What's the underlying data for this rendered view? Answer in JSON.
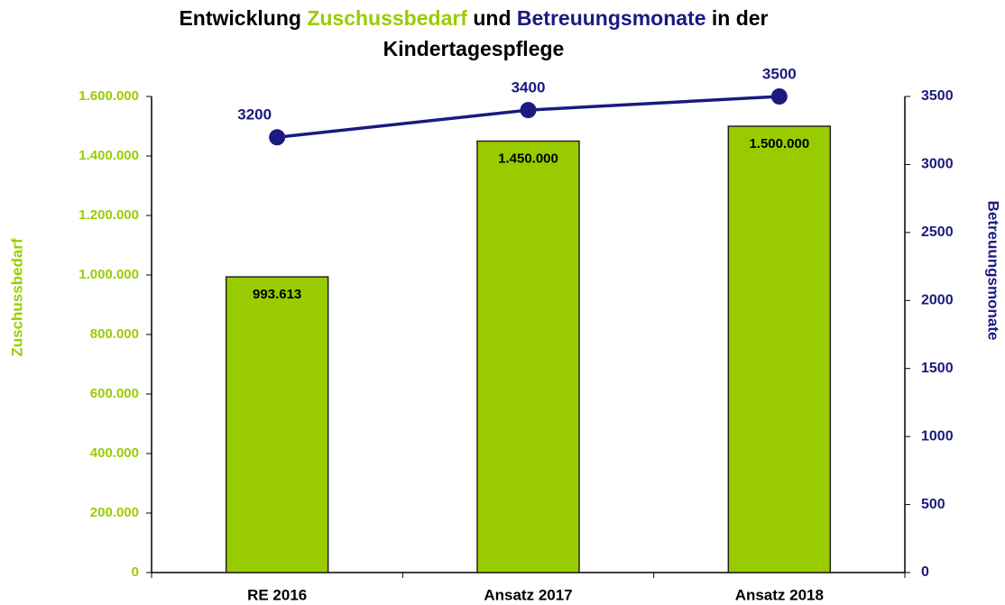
{
  "chart_data": {
    "type": "bar_line",
    "title": [
      "Entwicklung",
      "Zuschussbedarf",
      "und",
      "Betreuungsmonate",
      "in der",
      "Kindertagespflege"
    ],
    "categories": [
      "RE 2016",
      "Ansatz 2017",
      "Ansatz 2018"
    ],
    "series": [
      {
        "name": "Zuschussbedarf",
        "type": "bar",
        "color": "#99cc00",
        "values": [
          993613,
          1450000,
          1500000
        ],
        "value_labels": [
          "993.613",
          "1.450.000",
          "1.500.000"
        ]
      },
      {
        "name": "Betreuungsmonate",
        "type": "line",
        "axis": "y2",
        "color": "#1a1a80",
        "values": [
          3200,
          3400,
          3500
        ]
      }
    ],
    "ylim": [
      0,
      1600000
    ],
    "yticks": [
      0,
      {
        "value": 200000,
        "label": "200.000"
      },
      {
        "value": 400000,
        "label": "400.000"
      },
      {
        "value": 600000,
        "label": "600.000"
      },
      {
        "value": 800000,
        "label": "800.000"
      },
      {
        "value": 1000000,
        "label": "1.000.000"
      },
      {
        "value": 1200000,
        "label": "1.200.000"
      },
      {
        "value": 1400000,
        "label": "1.400.000"
      },
      {
        "value": 1600000,
        "label": "1.600.000"
      }
    ],
    "y2lim": [
      0,
      3500
    ],
    "y2ticks": [
      0,
      500,
      1000,
      1500,
      2000,
      2500,
      3000,
      3500
    ],
    "grid": false
  }
}
